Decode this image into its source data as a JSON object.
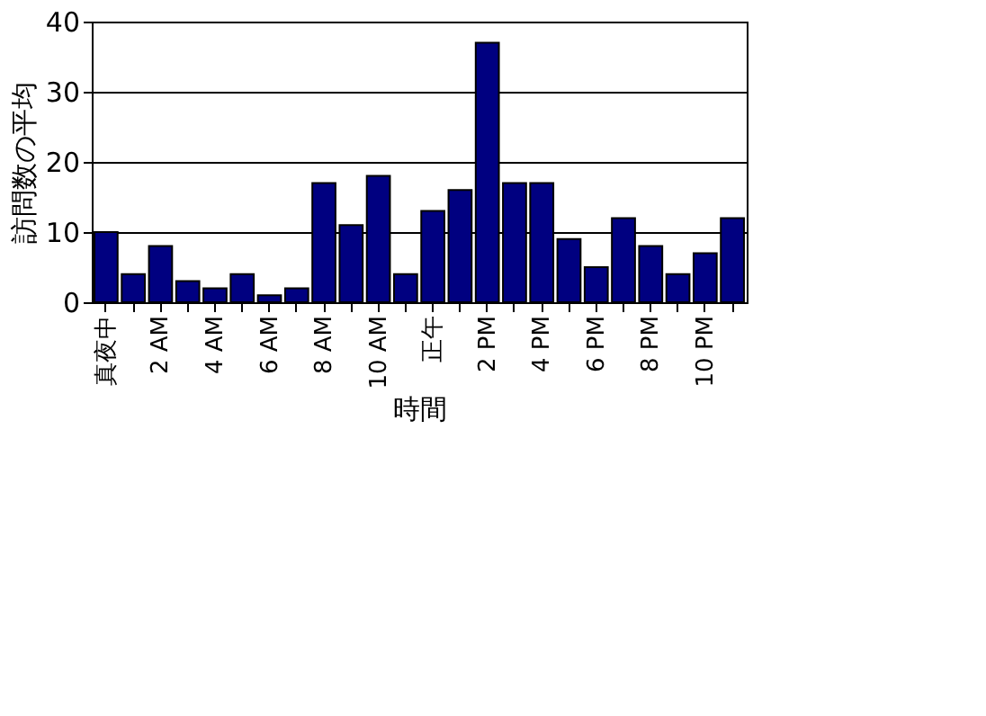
{
  "chart_data": {
    "type": "bar",
    "xlabel": "時間",
    "ylabel": "訪問数の平均",
    "categories": [
      "真夜中",
      null,
      "2 AM",
      null,
      "4 AM",
      null,
      "6 AM",
      null,
      "8 AM",
      null,
      "10 AM",
      null,
      "正午",
      null,
      "2 PM",
      null,
      "4 PM",
      null,
      "6 PM",
      null,
      "8 PM",
      null,
      "10 PM",
      null
    ],
    "values": [
      10,
      4,
      8,
      3,
      2,
      4,
      1,
      2,
      17,
      11,
      18,
      4,
      13,
      16,
      37,
      17,
      17,
      9,
      5,
      12,
      8,
      4,
      7,
      12
    ],
    "color": "#000080",
    "ylim": [
      0,
      40
    ],
    "yticks": [
      0,
      10,
      20,
      30,
      40
    ],
    "grid": "y"
  }
}
